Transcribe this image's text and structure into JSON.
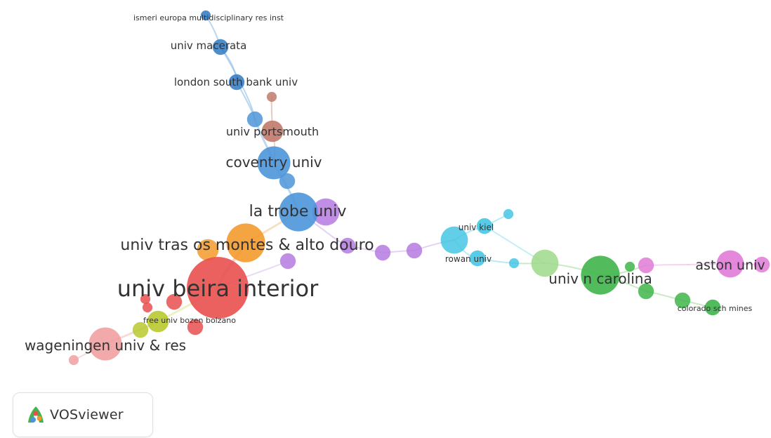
{
  "app": {
    "name": "VOSviewer"
  },
  "colors": {
    "red": "#e8504f",
    "orange": "#f39a2b",
    "blue": "#4d95d9",
    "darkblue": "#3b7fc4",
    "purple": "#b57be0",
    "cyan": "#46c6e3",
    "green": "#3fb54a",
    "lightgreen": "#9ed98a",
    "pink": "#e07bd6",
    "brown": "#c07a6b",
    "lime": "#b8c92d",
    "salmon": "#f0a0a0"
  },
  "nodes": [
    {
      "id": "ismeri",
      "label": "ismeri europa multidisciplinary res inst",
      "color": "darkblue",
      "weight": 1
    },
    {
      "id": "macerata",
      "label": "univ macerata",
      "color": "darkblue",
      "weight": 2
    },
    {
      "id": "lsbu",
      "label": "london south bank univ",
      "color": "darkblue",
      "weight": 2
    },
    {
      "id": "portsmouth",
      "label": "univ portsmouth",
      "color": "brown",
      "weight": 3
    },
    {
      "id": "coventry",
      "label": "coventry univ",
      "color": "blue",
      "weight": 5
    },
    {
      "id": "latrobe",
      "label": "la trobe univ",
      "color": "blue",
      "weight": 6
    },
    {
      "id": "utad",
      "label": "univ tras os montes & alto douro",
      "color": "orange",
      "weight": 6
    },
    {
      "id": "ubi",
      "label": "univ beira interior",
      "color": "red",
      "weight": 10
    },
    {
      "id": "bolzano",
      "label": "free univ bozen bolzano",
      "color": "lime",
      "weight": 3
    },
    {
      "id": "wageningen",
      "label": "wageningen univ & res",
      "color": "salmon",
      "weight": 5
    },
    {
      "id": "kiel",
      "label": "univ kiel",
      "color": "cyan",
      "weight": 2
    },
    {
      "id": "rowan",
      "label": "rowan univ",
      "color": "cyan",
      "weight": 2
    },
    {
      "id": "unc",
      "label": "univ n carolina",
      "color": "green",
      "weight": 6
    },
    {
      "id": "aston",
      "label": "aston univ",
      "color": "pink",
      "weight": 4
    },
    {
      "id": "mines",
      "label": "colorado sch mines",
      "color": "green",
      "weight": 2
    }
  ],
  "minor_nodes": [
    {
      "color": "brown",
      "weight": 1
    },
    {
      "color": "blue",
      "weight": 2
    },
    {
      "color": "blue",
      "weight": 2
    },
    {
      "color": "purple",
      "weight": 4
    },
    {
      "color": "purple",
      "weight": 2
    },
    {
      "color": "purple",
      "weight": 2
    },
    {
      "color": "purple",
      "weight": 2
    },
    {
      "color": "purple",
      "weight": 2
    },
    {
      "color": "orange",
      "weight": 3
    },
    {
      "color": "red",
      "weight": 2
    },
    {
      "color": "red",
      "weight": 1
    },
    {
      "color": "red",
      "weight": 1
    },
    {
      "color": "red",
      "weight": 2
    },
    {
      "color": "lime",
      "weight": 2
    },
    {
      "color": "salmon",
      "weight": 1
    },
    {
      "color": "cyan",
      "weight": 4
    },
    {
      "color": "cyan",
      "weight": 1
    },
    {
      "color": "cyan",
      "weight": 1
    },
    {
      "color": "lightgreen",
      "weight": 4
    },
    {
      "color": "green",
      "weight": 1
    },
    {
      "color": "green",
      "weight": 2
    },
    {
      "color": "green",
      "weight": 2
    },
    {
      "color": "pink",
      "weight": 2
    },
    {
      "color": "pink",
      "weight": 2
    }
  ]
}
